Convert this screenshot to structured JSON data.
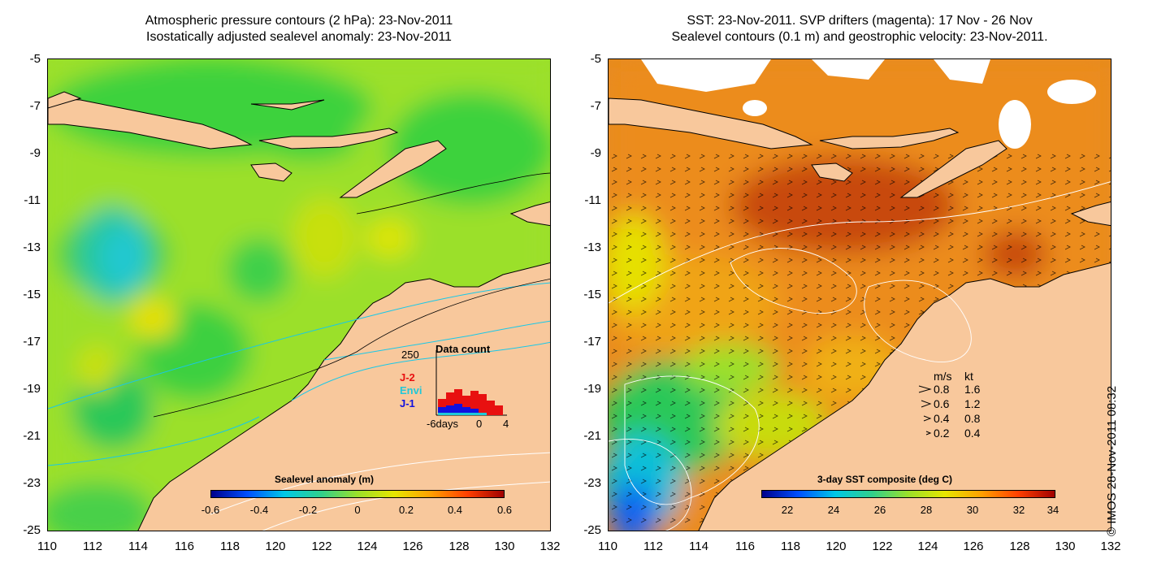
{
  "left_panel": {
    "title_line1": "Atmospheric pressure contours (2 hPa): 23-Nov-2011",
    "title_line2": "Isostatically adjusted sealevel anomaly: 23-Nov-2011",
    "colorbar_label": "Sealevel anomaly (m)",
    "colorbar_ticks": [
      "-0.6",
      "-0.4",
      "-0.2",
      "0",
      "0.2",
      "0.4",
      "0.6"
    ],
    "inset": {
      "title": "Data count",
      "max_label": "250",
      "series": [
        "J-2",
        "Envi",
        "J-1"
      ],
      "series_colors": [
        "#e81010",
        "#20c8d8",
        "#1010e0"
      ],
      "x_labels": [
        "-6days",
        "0",
        "4"
      ]
    }
  },
  "right_panel": {
    "title_line1": "SST: 23-Nov-2011. SVP drifters (magenta): 17 Nov - 26 Nov",
    "title_line2": "Sealevel contours (0.1 m) and geostrophic velocity: 23-Nov-2011.",
    "colorbar_label": "3-day SST composite (deg C)",
    "colorbar_ticks": [
      "22",
      "24",
      "26",
      "28",
      "30",
      "32",
      "34"
    ],
    "velocity_legend": {
      "header_ms": "m/s",
      "header_kt": "kt",
      "rows": [
        {
          "ms": "0.8",
          "kt": "1.6"
        },
        {
          "ms": "0.6",
          "kt": "1.2"
        },
        {
          "ms": "0.4",
          "kt": "0.8"
        },
        {
          "ms": "0.2",
          "kt": "0.4"
        }
      ]
    }
  },
  "axes": {
    "y_ticks": [
      "-5",
      "-7",
      "-9",
      "-11",
      "-13",
      "-15",
      "-17",
      "-19",
      "-21",
      "-23",
      "-25"
    ],
    "x_ticks": [
      "110",
      "112",
      "114",
      "116",
      "118",
      "120",
      "122",
      "124",
      "126",
      "128",
      "130",
      "132"
    ]
  },
  "credit": "© IMOS 28-Nov-2011 08:32",
  "colors": {
    "land": "#f8c89c",
    "sla_colormap": [
      "#00008c",
      "#0050ff",
      "#00c8e6",
      "#30d08c",
      "#9be02a",
      "#e6e600",
      "#ffa000",
      "#ff4000",
      "#a00000"
    ],
    "sst_colormap": [
      "#00008c",
      "#0050ff",
      "#00c8e6",
      "#30d08c",
      "#9be02a",
      "#e6e600",
      "#ffa000",
      "#ff4000",
      "#a00000"
    ]
  }
}
